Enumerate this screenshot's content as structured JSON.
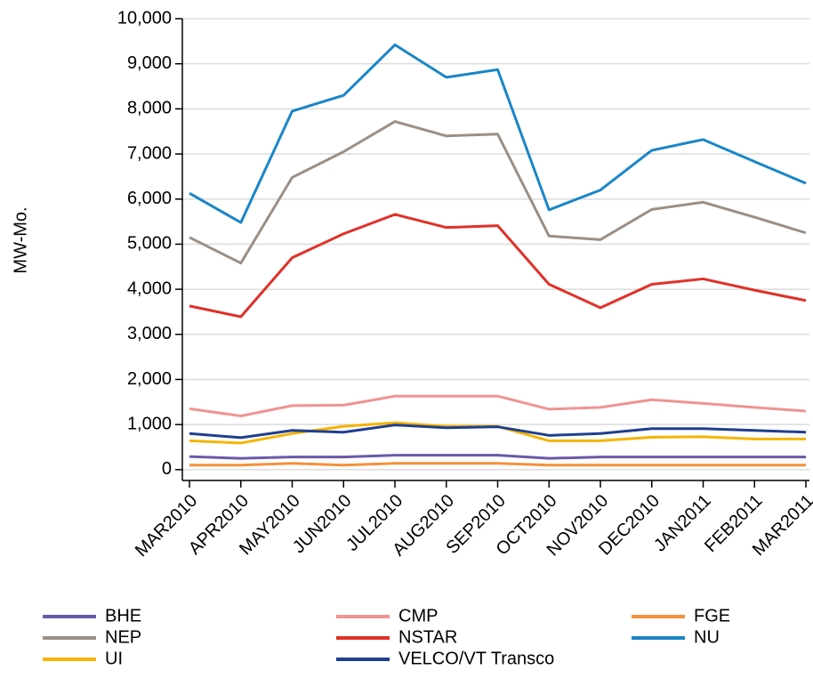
{
  "chart_data": {
    "type": "line",
    "y_label": "MW-Mo.",
    "categories": [
      "MAR2010",
      "APR2010",
      "MAY2010",
      "JUN2010",
      "JUL2010",
      "AUG2010",
      "SEP2010",
      "OCT2010",
      "NOV2010",
      "DEC2010",
      "JAN2011",
      "FEB2011",
      "MAR2011"
    ],
    "series": [
      {
        "name": "BHE",
        "color": "#6a5aa8",
        "values": [
          290,
          250,
          280,
          280,
          320,
          320,
          320,
          250,
          280,
          280,
          280,
          280,
          280
        ]
      },
      {
        "name": "CMP",
        "color": "#f09393",
        "values": [
          1350,
          1190,
          1420,
          1430,
          1630,
          1630,
          1630,
          1340,
          1380,
          1550,
          1470,
          1380,
          1300
        ]
      },
      {
        "name": "FGE",
        "color": "#f4913c",
        "values": [
          100,
          100,
          140,
          100,
          140,
          140,
          140,
          100,
          100,
          100,
          100,
          100,
          100
        ]
      },
      {
        "name": "NEP",
        "color": "#9b8f85",
        "values": [
          5150,
          4580,
          6480,
          7050,
          7720,
          7400,
          7440,
          5180,
          5100,
          5770,
          5930,
          5600,
          5250
        ]
      },
      {
        "name": "NSTAR",
        "color": "#e03128",
        "values": [
          3630,
          3390,
          4700,
          5230,
          5660,
          5370,
          5410,
          4110,
          3590,
          4110,
          4230,
          3980,
          3750
        ]
      },
      {
        "name": "NU",
        "color": "#1a86c8",
        "values": [
          6130,
          5480,
          7950,
          8300,
          9420,
          8700,
          8870,
          5760,
          6200,
          7080,
          7320,
          6830,
          6350
        ]
      },
      {
        "name": "UI",
        "color": "#f5b400",
        "values": [
          640,
          590,
          800,
          960,
          1040,
          960,
          960,
          640,
          640,
          720,
          730,
          680,
          680
        ]
      },
      {
        "name": "VELCO/VT Transco",
        "color": "#1f3f8f",
        "values": [
          800,
          710,
          870,
          830,
          990,
          930,
          950,
          760,
          800,
          910,
          910,
          870,
          830
        ]
      }
    ],
    "ylim": [
      -240,
      10000
    ],
    "yticks": [
      0,
      {
        "value": 1000,
        "label": "1,000"
      },
      {
        "value": 2000,
        "label": "2,000"
      },
      {
        "value": 3000,
        "label": "3,000"
      },
      {
        "value": 4000,
        "label": "4,000"
      },
      {
        "value": 5000,
        "label": "5,000"
      },
      {
        "value": 6000,
        "label": "6,000"
      },
      {
        "value": 7000,
        "label": "7,000"
      },
      {
        "value": 8000,
        "label": "8,000"
      },
      {
        "value": 9000,
        "label": "9,000"
      },
      {
        "value": 10000,
        "label": "10,000"
      }
    ],
    "grid": true
  }
}
